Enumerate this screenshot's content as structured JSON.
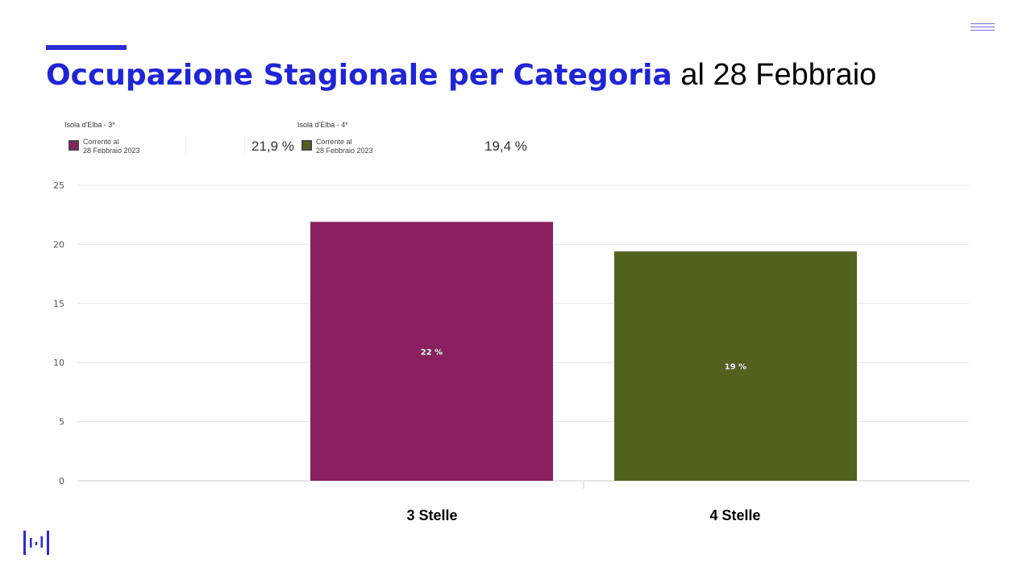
{
  "slide": {
    "title_bold": "Occupazione Stagionale per Categoria",
    "title_normal": "al 28 Febbraio"
  },
  "legend": [
    {
      "title": "Isola d'Elba - 3*",
      "label_line1": "Corrente al",
      "label_line2": "28 Febbraio 2023",
      "value": "21,9 %",
      "color": "#8b2060"
    },
    {
      "title": "Isola d'Elba - 4*",
      "label_line1": "Corrente al",
      "label_line2": "28 Febbraio 2023",
      "value": "19,4 %",
      "color": "#51621e"
    }
  ],
  "colors": {
    "accent": "#2a2dd8",
    "title_blue": "#1f25d6",
    "bar_3": "#8b2060",
    "bar_4": "#51621e"
  },
  "chart_data": {
    "type": "bar",
    "categories": [
      "3 Stelle",
      "4 Stelle"
    ],
    "values": [
      21.9,
      19.4
    ],
    "data_labels": [
      "22 %",
      "19 %"
    ],
    "series": [
      {
        "name": "Isola d'Elba - 3*",
        "values": [
          21.9,
          null
        ]
      },
      {
        "name": "Isola d'Elba - 4*",
        "values": [
          null,
          19.4
        ]
      }
    ],
    "ylim": [
      0,
      25
    ],
    "yticks": [
      0,
      5,
      10,
      15,
      20,
      25
    ],
    "grid": true,
    "legend_position": "top-left"
  }
}
